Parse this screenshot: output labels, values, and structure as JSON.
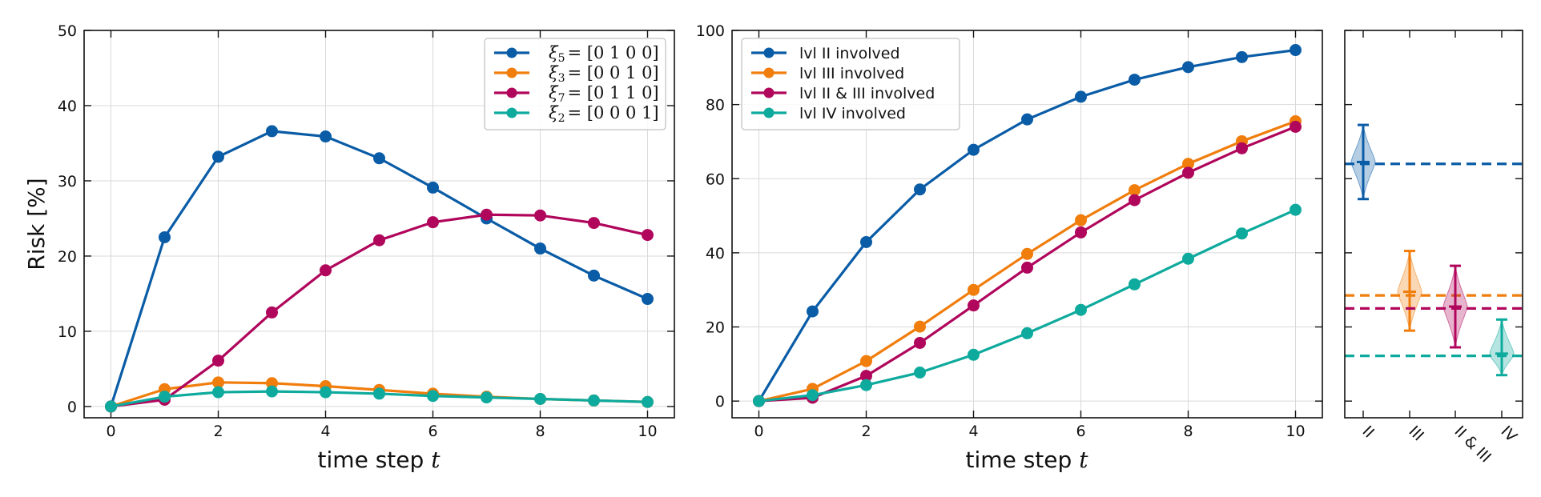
{
  "chart_data": [
    {
      "type": "line",
      "xlabel": "time step",
      "xlabel_var": "t",
      "ylabel": "Risk [%]",
      "xlim": [
        -0.5,
        10.5
      ],
      "ylim": [
        -1.5,
        50
      ],
      "xticks": [
        0,
        2,
        4,
        6,
        8,
        10
      ],
      "yticks": [
        0,
        10,
        20,
        30,
        40,
        50
      ],
      "grid": true,
      "legend_position": "top-right",
      "x": [
        0,
        1,
        2,
        3,
        4,
        5,
        6,
        7,
        8,
        9,
        10
      ],
      "series": [
        {
          "name": "ξ5 = [0 1 0 0]",
          "sym": "ξ",
          "sub": "5",
          "vec": "= [0 1 0 0]",
          "color": "#0a5ca6",
          "values": [
            0,
            22.5,
            33.2,
            36.6,
            35.9,
            33.0,
            29.1,
            25.0,
            21.0,
            17.4,
            14.3
          ]
        },
        {
          "name": "ξ3 = [0 0 1 0]",
          "sym": "ξ",
          "sub": "3",
          "vec": "= [0 0 1 0]",
          "color": "#f07d0c",
          "values": [
            0,
            2.3,
            3.2,
            3.1,
            2.7,
            2.2,
            1.7,
            1.3,
            1.0,
            0.8,
            0.6
          ]
        },
        {
          "name": "ξ7 = [0 1 1 0]",
          "sym": "ξ",
          "sub": "7",
          "vec": "= [0 1 1 0]",
          "color": "#b0065c",
          "values": [
            0,
            0.9,
            6.1,
            12.5,
            18.1,
            22.1,
            24.5,
            25.5,
            25.4,
            24.4,
            22.8
          ]
        },
        {
          "name": "ξ2 = [0 0 0 1]",
          "sym": "ξ",
          "sub": "2",
          "vec": "= [0 0 0 1]",
          "color": "#0eaa9d",
          "values": [
            0,
            1.3,
            1.9,
            2.0,
            1.9,
            1.7,
            1.4,
            1.2,
            1.0,
            0.8,
            0.6
          ]
        }
      ]
    },
    {
      "type": "line",
      "xlabel": "time step",
      "xlabel_var": "t",
      "ylabel": "",
      "xlim": [
        -0.5,
        10.5
      ],
      "ylim": [
        -4.5,
        100
      ],
      "xticks": [
        0,
        2,
        4,
        6,
        8,
        10
      ],
      "yticks": [
        0,
        20,
        40,
        60,
        80,
        100
      ],
      "grid": true,
      "legend_position": "top-left",
      "x": [
        0,
        1,
        2,
        3,
        4,
        5,
        6,
        7,
        8,
        9,
        10
      ],
      "series": [
        {
          "name": "lvl II involved",
          "color": "#0a5ca6",
          "values": [
            0,
            24.2,
            42.9,
            57.1,
            67.8,
            76.0,
            82.1,
            86.7,
            90.1,
            92.8,
            94.7
          ]
        },
        {
          "name": "lvl III involved",
          "color": "#f07d0c",
          "values": [
            0,
            3.3,
            10.8,
            20.1,
            30.0,
            39.7,
            48.8,
            56.9,
            64.0,
            70.1,
            75.5
          ]
        },
        {
          "name": "lvl II & III involved",
          "color": "#b0065c",
          "values": [
            0,
            0.9,
            6.8,
            15.7,
            25.8,
            36.0,
            45.5,
            54.2,
            61.6,
            68.2,
            74.0
          ]
        },
        {
          "name": "lvl IV involved",
          "color": "#0eaa9d",
          "values": [
            0,
            1.6,
            4.3,
            7.7,
            12.5,
            18.3,
            24.6,
            31.5,
            38.4,
            45.2,
            51.6
          ]
        }
      ]
    },
    {
      "type": "violin",
      "ylim": [
        -4.5,
        100
      ],
      "ytick_marks": [
        0,
        20,
        40,
        60,
        80,
        100
      ],
      "categories": [
        "II",
        "III",
        "II & III",
        "IV"
      ],
      "series": [
        {
          "name": "II",
          "color": "#0a5ca6",
          "center": 64.5,
          "low": 54.5,
          "high": 74.5,
          "line": 64.0
        },
        {
          "name": "III",
          "color": "#f07d0c",
          "center": 29.5,
          "low": 19.0,
          "high": 40.5,
          "line": 28.5
        },
        {
          "name": "II & III",
          "color": "#b0065c",
          "center": 25.5,
          "low": 14.5,
          "high": 36.5,
          "line": 25.0
        },
        {
          "name": "IV",
          "color": "#0eaa9d",
          "center": 12.8,
          "low": 7.0,
          "high": 22.0,
          "line": 12.2
        }
      ]
    }
  ]
}
